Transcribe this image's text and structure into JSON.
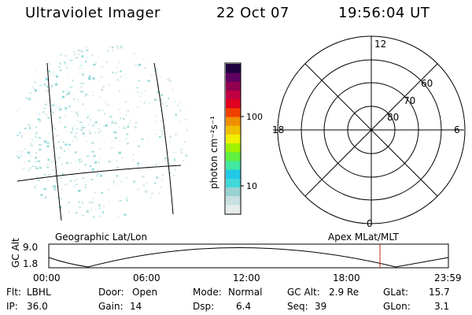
{
  "header": {
    "title": "Ultraviolet Imager",
    "date": "22 Oct 07",
    "time": "19:56:04 UT"
  },
  "colorbar": {
    "unit_label": "photon cm⁻²s⁻¹",
    "ticks": [
      "100",
      "10"
    ],
    "colors": [
      "#e6ecec",
      "#c8e0e0",
      "#9ad2d2",
      "#40d8d8",
      "#20c8e8",
      "#40e8a0",
      "#60f040",
      "#a0f000",
      "#f0f000",
      "#f0c000",
      "#f09000",
      "#f04000",
      "#e00020",
      "#c00040",
      "#900050",
      "#600060",
      "#200040"
    ]
  },
  "polar": {
    "clock_labels": {
      "top": "12",
      "left": "18",
      "right": "6",
      "bottom": "0"
    },
    "lat_labels": [
      "60",
      "70",
      "80"
    ]
  },
  "strip": {
    "left_label": "Geographic Lat/Lon",
    "right_label": "Apex MLat/MLT",
    "axis_label": "GC Alt",
    "y_ticks": [
      "9.0",
      "1.8"
    ],
    "x_ticks": [
      "00:00",
      "06:00",
      "12:00",
      "18:00",
      "23:59"
    ],
    "marker_color": "#cc2222"
  },
  "status": {
    "filter": {
      "label": "Flt:",
      "value": "LBHL"
    },
    "door": {
      "label": "Door:",
      "value": "Open"
    },
    "mode": {
      "label": "Mode:",
      "value": "Normal"
    },
    "gcalt": {
      "label": "GC Alt:",
      "value": "2.9 Re"
    },
    "glat": {
      "label": "GLat:",
      "value": "15.7"
    },
    "ip": {
      "label": "IP:",
      "value": "36.0"
    },
    "gain": {
      "label": "Gain:",
      "value": "14"
    },
    "dsp": {
      "label": "Dsp:",
      "value": "6.4"
    },
    "seq": {
      "label": "Seq:",
      "value": "39"
    },
    "glon": {
      "label": "GLon:",
      "value": "3.1"
    }
  }
}
